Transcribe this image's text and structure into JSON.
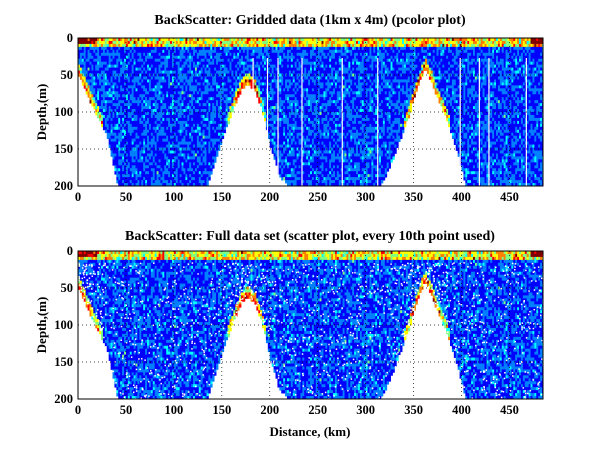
{
  "chart_data": [
    {
      "type": "heatmap",
      "title": "BackScatter: Gridded data (1km x 4m) (pcolor plot)",
      "xlabel": "",
      "ylabel": "Depth,(m)",
      "xlim": [
        0,
        485
      ],
      "ylim": [
        200,
        0
      ],
      "y_reversed": true,
      "grid": true,
      "xticks": [
        "0",
        "50",
        "100",
        "150",
        "200",
        "250",
        "300",
        "350",
        "400",
        "450"
      ],
      "yticks": [
        "0",
        "50",
        "100",
        "150",
        "200"
      ],
      "grid_resolution": {
        "x_km": 1,
        "y_m": 4
      },
      "bottom_depth_profile": {
        "x": [
          0,
          8,
          15,
          30,
          42,
          55,
          70,
          90,
          110,
          125,
          135,
          145,
          155,
          165,
          172,
          178,
          185,
          192,
          200,
          210,
          222,
          235,
          250,
          270,
          290,
          305,
          315,
          325,
          335,
          345,
          352,
          358,
          362,
          368,
          375,
          385,
          395,
          405,
          412,
          420,
          430,
          445,
          460,
          470,
          478,
          485
        ],
        "depth": [
          45,
          70,
          90,
          130,
          200,
          200,
          200,
          200,
          200,
          200,
          200,
          160,
          120,
          85,
          65,
          60,
          70,
          95,
          140,
          185,
          200,
          200,
          200,
          200,
          200,
          200,
          200,
          175,
          140,
          105,
          75,
          52,
          40,
          55,
          80,
          110,
          150,
          200,
          200,
          200,
          200,
          200,
          200,
          200,
          200,
          200
        ]
      },
      "colormap": [
        "#00008f",
        "#0000ff",
        "#0080ff",
        "#00ffff",
        "#80ff80",
        "#ffff00",
        "#ff8000",
        "#ff0000",
        "#800000"
      ]
    },
    {
      "type": "scatter",
      "title": "BackScatter: Full data set (scatter plot, every 10th point used)",
      "xlabel": "Distance, (km)",
      "ylabel": "Depth,(m)",
      "xlim": [
        0,
        485
      ],
      "ylim": [
        200,
        0
      ],
      "y_reversed": true,
      "grid": true,
      "xticks": [
        "0",
        "50",
        "100",
        "150",
        "200",
        "250",
        "300",
        "350",
        "400",
        "450"
      ],
      "yticks": [
        "0",
        "50",
        "100",
        "150",
        "200"
      ],
      "sampling": "every 10th point",
      "colormap": [
        "#00008f",
        "#0000ff",
        "#0080ff",
        "#00ffff",
        "#80ff80",
        "#ffff00",
        "#ff8000",
        "#ff0000",
        "#800000"
      ]
    }
  ]
}
